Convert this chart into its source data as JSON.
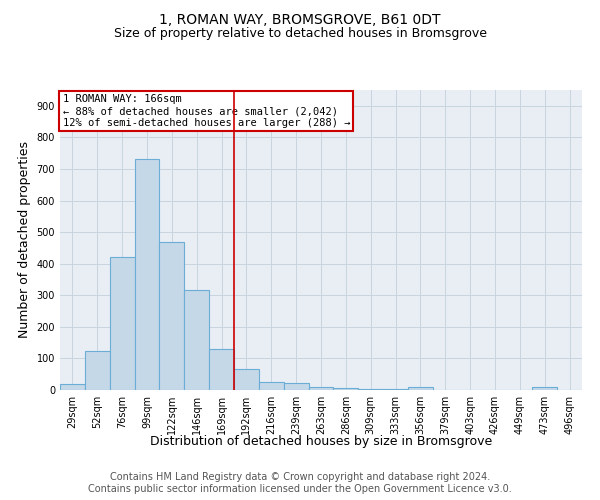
{
  "title": "1, ROMAN WAY, BROMSGROVE, B61 0DT",
  "subtitle": "Size of property relative to detached houses in Bromsgrove",
  "xlabel": "Distribution of detached houses by size in Bromsgrove",
  "ylabel": "Number of detached properties",
  "footer_line1": "Contains HM Land Registry data © Crown copyright and database right 2024.",
  "footer_line2": "Contains public sector information licensed under the Open Government Licence v3.0.",
  "categories": [
    "29sqm",
    "52sqm",
    "76sqm",
    "99sqm",
    "122sqm",
    "146sqm",
    "169sqm",
    "192sqm",
    "216sqm",
    "239sqm",
    "263sqm",
    "286sqm",
    "309sqm",
    "333sqm",
    "356sqm",
    "379sqm",
    "403sqm",
    "426sqm",
    "449sqm",
    "473sqm",
    "496sqm"
  ],
  "values": [
    20,
    122,
    422,
    730,
    468,
    318,
    130,
    65,
    25,
    22,
    10,
    7,
    2,
    2,
    8,
    0,
    0,
    0,
    0,
    8,
    0
  ],
  "bar_color": "#c5d8e8",
  "bar_edge_color": "#6aaed6",
  "annotation_line1": "1 ROMAN WAY: 166sqm",
  "annotation_line2": "← 88% of detached houses are smaller (2,042)",
  "annotation_line3": "12% of semi-detached houses are larger (288) →",
  "annotation_box_edge_color": "#cc0000",
  "property_line_x": 6.5,
  "ylim": [
    0,
    950
  ],
  "yticks": [
    0,
    100,
    200,
    300,
    400,
    500,
    600,
    700,
    800,
    900
  ],
  "plot_bg_color": "#e8eef4",
  "fig_bg_color": "#ffffff",
  "grid_color": "#c8d4de",
  "title_fontsize": 10,
  "subtitle_fontsize": 9,
  "axis_label_fontsize": 9,
  "tick_fontsize": 7,
  "annotation_fontsize": 7.5,
  "footer_fontsize": 7
}
